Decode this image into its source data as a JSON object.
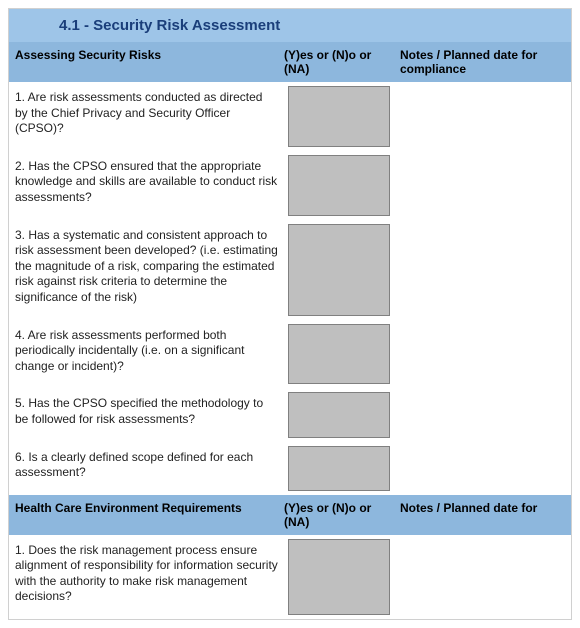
{
  "colors": {
    "title_bg": "#9ec5e8",
    "title_text": "#1a3e7a",
    "header_bg": "#8db7dd",
    "answer_box_bg": "#bfbfbf",
    "answer_box_border": "#808080",
    "text": "#000000",
    "page_border": "#d0d0d0"
  },
  "title": "4.1 - Security Risk Assessment",
  "sections": [
    {
      "header": {
        "question_col": "Assessing Security Risks",
        "answer_col": "(Y)es or (N)o or (NA)",
        "notes_col": "Notes  / Planned date for compliance"
      },
      "rows": [
        {
          "q": "1. Are risk assessments conducted as directed by the Chief Privacy and Security Officer (CPSO)?"
        },
        {
          "q": "2. Has the CPSO ensured that the appropriate knowledge and skills are available to conduct risk assessments?"
        },
        {
          "q": "3. Has a systematic and consistent approach to risk assessment been developed? (i.e. estimating the magnitude of a risk, comparing the estimated risk against risk criteria to determine the significance of the risk)"
        },
        {
          "q": "4. Are risk assessments performed both periodically incidentally (i.e. on a significant change or incident)?"
        },
        {
          "q": "5. Has the CPSO specified the methodology to be followed for risk assessments?"
        },
        {
          "q": "6. Is a clearly defined scope defined for each assessment?"
        }
      ]
    },
    {
      "header": {
        "question_col": "Health Care Environment Requirements",
        "answer_col": "(Y)es or (N)o or (NA)",
        "notes_col": "Notes  / Planned date for"
      },
      "rows": [
        {
          "q": "1. Does the risk management process ensure alignment of responsibility for information security with the authority to make risk management decisions?"
        }
      ]
    }
  ]
}
